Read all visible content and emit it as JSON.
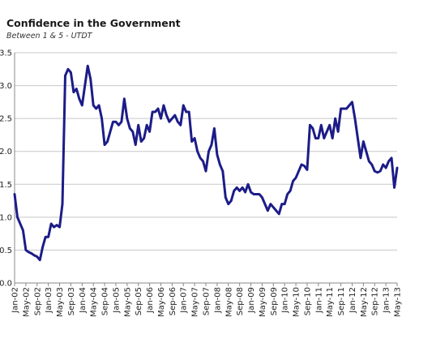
{
  "chart_data": {
    "type": "line",
    "title": "Confidence in the Government",
    "subtitle": "Between 1 & 5 - UTDT",
    "categories": [
      "Jan-02",
      null,
      null,
      null,
      "May-02",
      null,
      null,
      null,
      "Sep-02",
      null,
      null,
      null,
      "Jan-03",
      null,
      null,
      null,
      "May-03",
      null,
      null,
      null,
      "Sep-03",
      null,
      null,
      null,
      "Jan-04",
      null,
      null,
      null,
      "May-04",
      null,
      null,
      null,
      "Sep-04",
      null,
      null,
      null,
      "Jan-05",
      null,
      null,
      null,
      "May-05",
      null,
      null,
      null,
      "Sep-05",
      null,
      null,
      null,
      "Jan-06",
      null,
      null,
      null,
      "May-06",
      null,
      null,
      null,
      "Sep-06",
      null,
      null,
      null,
      "Jan-07",
      null,
      null,
      null,
      "May-07",
      null,
      null,
      null,
      "Sep-07",
      null,
      null,
      null,
      "Jan-08",
      null,
      null,
      null,
      "May-08",
      null,
      null,
      null,
      "Sep-08",
      null,
      null,
      null,
      "Jan-09",
      null,
      null,
      null,
      "May-09",
      null,
      null,
      null,
      "Sep-09",
      null,
      null,
      null,
      "Jan-10",
      null,
      null,
      null,
      "May-10",
      null,
      null,
      null,
      "Sep-10",
      null,
      null,
      null,
      "Jan-11",
      null,
      null,
      null,
      "May-11",
      null,
      null,
      null,
      "Sep-11",
      null,
      null,
      null,
      "Jan-12",
      null,
      null,
      null,
      "May-12",
      null,
      null,
      null,
      "Sep-12",
      null,
      null,
      null,
      "Jan-13",
      null,
      null,
      null,
      "May-13"
    ],
    "values": [
      1.35,
      1.0,
      0.9,
      0.8,
      0.5,
      0.47,
      0.45,
      0.42,
      0.4,
      0.35,
      0.55,
      0.7,
      0.7,
      0.9,
      0.85,
      0.88,
      0.85,
      1.2,
      3.15,
      3.25,
      3.2,
      2.9,
      2.95,
      2.8,
      2.7,
      3.0,
      3.3,
      3.1,
      2.7,
      2.65,
      2.7,
      2.5,
      2.1,
      2.15,
      2.3,
      2.45,
      2.45,
      2.4,
      2.45,
      2.8,
      2.5,
      2.35,
      2.3,
      2.1,
      2.4,
      2.15,
      2.2,
      2.4,
      2.3,
      2.6,
      2.6,
      2.65,
      2.5,
      2.7,
      2.55,
      2.45,
      2.5,
      2.55,
      2.45,
      2.4,
      2.7,
      2.6,
      2.6,
      2.15,
      2.2,
      2.0,
      1.9,
      1.85,
      1.7,
      2.0,
      2.1,
      2.35,
      1.95,
      1.8,
      1.7,
      1.3,
      1.2,
      1.25,
      1.4,
      1.45,
      1.4,
      1.45,
      1.38,
      1.5,
      1.38,
      1.35,
      1.35,
      1.35,
      1.3,
      1.2,
      1.1,
      1.2,
      1.15,
      1.1,
      1.05,
      1.2,
      1.2,
      1.35,
      1.4,
      1.55,
      1.6,
      1.7,
      1.8,
      1.78,
      1.72,
      2.4,
      2.35,
      2.2,
      2.2,
      2.4,
      2.2,
      2.3,
      2.4,
      2.2,
      2.5,
      2.3,
      2.65,
      2.65,
      2.65,
      2.7,
      2.75,
      2.5,
      2.2,
      1.9,
      2.15,
      2.0,
      1.85,
      1.8,
      1.7,
      1.68,
      1.7,
      1.8,
      1.75,
      1.85,
      1.9,
      1.45,
      1.75
    ],
    "color": "#1c1c88",
    "ylim": [
      0,
      3.5
    ],
    "yticks": [
      {
        "value": 0,
        "label": "0.0"
      },
      0.5,
      {
        "value": 1,
        "label": "1.0"
      },
      1.5,
      {
        "value": 2,
        "label": "2.0"
      },
      2.5,
      {
        "value": 3,
        "label": "3.0"
      },
      3.5
    ],
    "grid": true
  }
}
